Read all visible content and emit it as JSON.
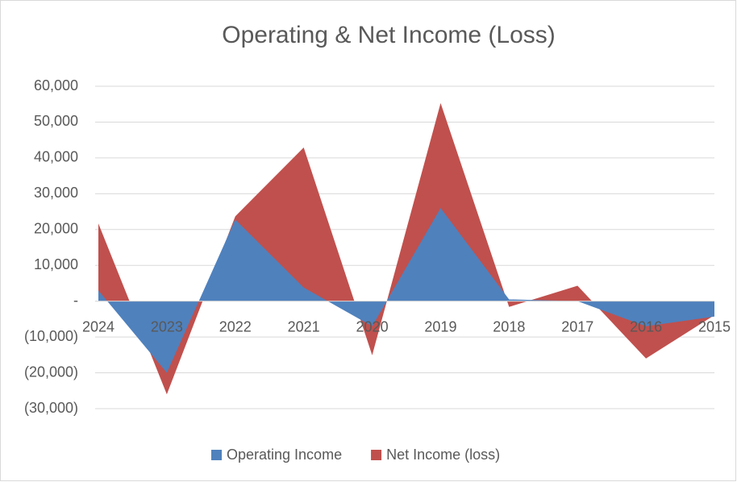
{
  "chart_data": {
    "type": "area",
    "title": "Operating & Net Income (Loss)",
    "categories": [
      "2024",
      "2023",
      "2022",
      "2021",
      "2020",
      "2019",
      "2018",
      "2017",
      "2016",
      "2015"
    ],
    "series": [
      {
        "name": "Operating Income",
        "color": "#4f81bd",
        "values": [
          3000,
          -20000,
          22800,
          3800,
          -7000,
          26000,
          500,
          0,
          -7000,
          -4300
        ]
      },
      {
        "name": "Net Income (loss)",
        "color": "#c0504d",
        "values": [
          21700,
          -26000,
          23700,
          42900,
          -15100,
          55300,
          -1600,
          4300,
          -16000,
          -3900
        ]
      }
    ],
    "ylim": [
      -30000,
      60000
    ],
    "yticks": [
      {
        "value": -30000,
        "label": "(30,000)"
      },
      {
        "value": -20000,
        "label": "(20,000)"
      },
      {
        "value": -10000,
        "label": "(10,000)"
      },
      {
        "value": 0,
        "label": "-"
      },
      {
        "value": 10000,
        "label": "10,000"
      },
      {
        "value": 20000,
        "label": "20,000"
      },
      {
        "value": 30000,
        "label": "30,000"
      },
      {
        "value": 40000,
        "label": "40,000"
      },
      {
        "value": 50000,
        "label": "50,000"
      },
      {
        "value": 60000,
        "label": "60,000"
      }
    ],
    "grid": true,
    "legend": "bottom"
  }
}
